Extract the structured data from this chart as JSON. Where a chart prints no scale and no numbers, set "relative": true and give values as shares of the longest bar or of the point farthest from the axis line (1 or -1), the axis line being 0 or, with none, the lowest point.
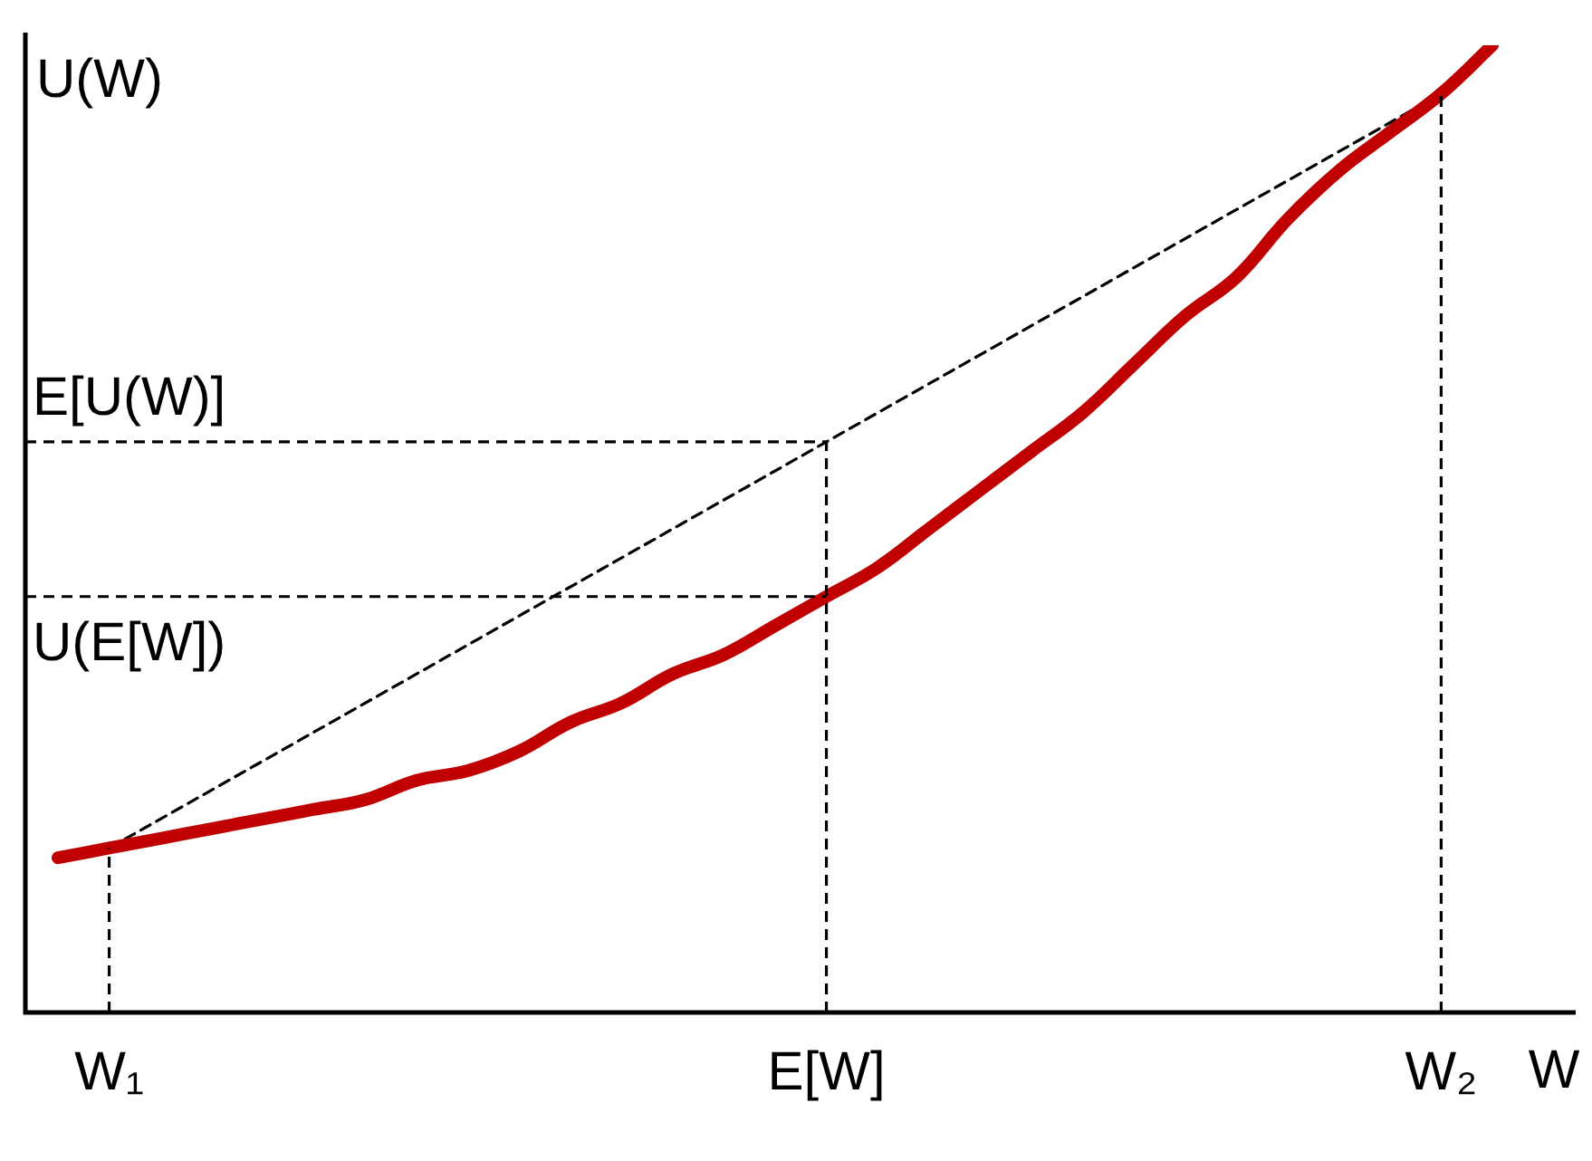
{
  "chart_data": {
    "type": "line",
    "relative": true,
    "xlabel": "W",
    "ylabel": "U(W)",
    "categories": [
      null,
      "W₁",
      null,
      null,
      null,
      null,
      null,
      null,
      null,
      null,
      null,
      null,
      null,
      null,
      null,
      "E[W]",
      null,
      null,
      null,
      null,
      null,
      null,
      null,
      null,
      null,
      null,
      null,
      "W₂",
      null
    ],
    "series": [
      {
        "type": "line",
        "color": "#c00000",
        "line_style": "solid",
        "values": [
          0.16,
          0.17,
          0.18,
          0.19,
          0.2,
          0.21,
          0.22,
          0.24,
          0.25,
          0.27,
          0.3,
          0.32,
          0.35,
          0.37,
          0.4,
          0.43,
          0.46,
          0.5,
          0.54,
          0.58,
          0.62,
          0.67,
          0.72,
          0.76,
          0.82,
          0.87,
          0.91,
          0.95,
          1
        ]
      },
      {
        "type": "line",
        "color": "#000000",
        "line_style": "dashed",
        "values": [
          null,
          0.17,
          null,
          null,
          null,
          null,
          null,
          null,
          null,
          null,
          null,
          null,
          null,
          null,
          null,
          null,
          null,
          null,
          null,
          null,
          null,
          null,
          null,
          null,
          null,
          null,
          null,
          0.95,
          null
        ]
      }
    ],
    "ref_lines": [
      {
        "axis": "x",
        "value": "W₁",
        "color": "#000000",
        "line_style": "dashed"
      },
      {
        "axis": "x",
        "value": "E[W]",
        "color": "#000000",
        "line_style": "dashed"
      },
      {
        "axis": "x",
        "value": "W₂",
        "color": "#000000",
        "line_style": "dashed"
      },
      {
        "axis": "y",
        "value": 0.59,
        "label": "E[U(W)]",
        "color": "#000000",
        "line_style": "dashed"
      },
      {
        "axis": "y",
        "value": 0.43,
        "label": "U(E[W])",
        "color": "#000000",
        "line_style": "dashed"
      }
    ],
    "grid": false,
    "legend": false,
    "marker": "none"
  }
}
